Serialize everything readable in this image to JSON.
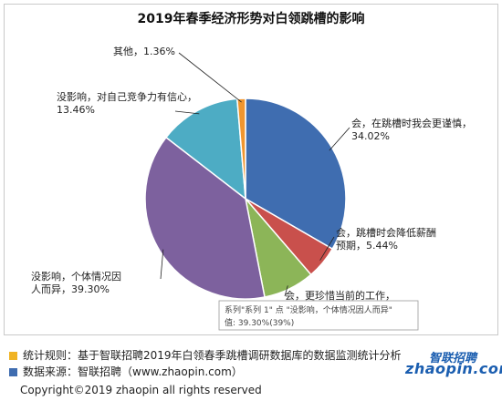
{
  "chart_data": {
    "type": "pie",
    "title": "2019年春季经济形势对白领跳槽的影响",
    "slices": [
      {
        "label_lines": [
          "会，在跳槽时我会更谨慎，",
          "34.02%"
        ],
        "value": 34.02,
        "color": "#3f6db0"
      },
      {
        "label_lines": [
          "会，跳槽时会降低薪酬",
          "预期，5.44%"
        ],
        "value": 5.44,
        "color": "#c9504c"
      },
      {
        "label_lines": [
          "会，更珍惜当前的工作，"
        ],
        "value": 8.42,
        "color": "#8cb558"
      },
      {
        "label_lines": [
          "没影响，个体情况因",
          "人而异，39.30%"
        ],
        "value": 39.3,
        "color": "#7d619e"
      },
      {
        "label_lines": [
          "没影响，对自己竞争力有信心，",
          "13.46%"
        ],
        "value": 13.46,
        "color": "#4dacc4"
      },
      {
        "label_lines": [
          "其他，1.36%"
        ],
        "value": 1.36,
        "color": "#f0962f"
      }
    ],
    "tooltip": {
      "line1": "系列\"系列 1\" 点 \"没影响，个体情况因人而异\"",
      "line2": "值: 39.30%(39%)"
    }
  },
  "footer": {
    "rule_text": "统计规则：基于智联招聘2019年白领春季跳槽调研数据库的数据监测统计分析",
    "source_text": "数据来源：智联招聘（www.zhaopin.com）",
    "rule_marker_color": "#f0b323",
    "source_marker_color": "#3f6db0",
    "copyright": "Copyright©2019 zhaopin all rights reserved"
  },
  "logo": {
    "cn": "智联招聘",
    "en": "zhaopin.com"
  }
}
